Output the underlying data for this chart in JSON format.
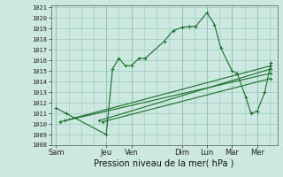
{
  "xlabel": "Pression niveau de la mer( hPa )",
  "background_color": "#cce8e0",
  "grid_color": "#99ccbb",
  "line_color": "#1a6e2a",
  "ylim": [
    1008,
    1021
  ],
  "ytick_min": 1008,
  "ytick_max": 1021,
  "x_labels": [
    "Sam",
    "Jeu",
    "Ven",
    "Dim",
    "Lun",
    "Mar",
    "Mer"
  ],
  "x_tick_pos": [
    0,
    2,
    3,
    5,
    6,
    7,
    8
  ],
  "xlim": [
    -0.2,
    8.8
  ],
  "main_x": [
    0,
    0.4,
    2.0,
    2.25,
    2.5,
    2.75,
    3.0,
    3.3,
    3.55,
    4.3,
    4.65,
    5.0,
    5.3,
    5.55,
    6.0,
    6.3,
    6.55,
    7.0,
    7.2,
    7.55,
    7.75,
    8.0,
    8.3,
    8.55
  ],
  "main_y": [
    1011.5,
    1011.0,
    1009.0,
    1015.2,
    1016.2,
    1015.5,
    1015.5,
    1016.2,
    1016.2,
    1017.8,
    1018.8,
    1019.1,
    1019.2,
    1019.2,
    1020.5,
    1019.4,
    1017.2,
    1015.0,
    1014.8,
    1012.5,
    1011.0,
    1011.2,
    1013.0,
    1015.8
  ],
  "line1_x": [
    0.15,
    8.55
  ],
  "line1_y": [
    1010.2,
    1015.5
  ],
  "line2_x": [
    0.35,
    8.55
  ],
  "line2_y": [
    1010.3,
    1014.8
  ],
  "line3_x": [
    1.7,
    8.55
  ],
  "line3_y": [
    1010.3,
    1015.2
  ],
  "line4_x": [
    1.85,
    8.55
  ],
  "line4_y": [
    1010.2,
    1014.3
  ],
  "xlabel_fontsize": 7,
  "ytick_fontsize": 5,
  "xtick_fontsize": 6
}
